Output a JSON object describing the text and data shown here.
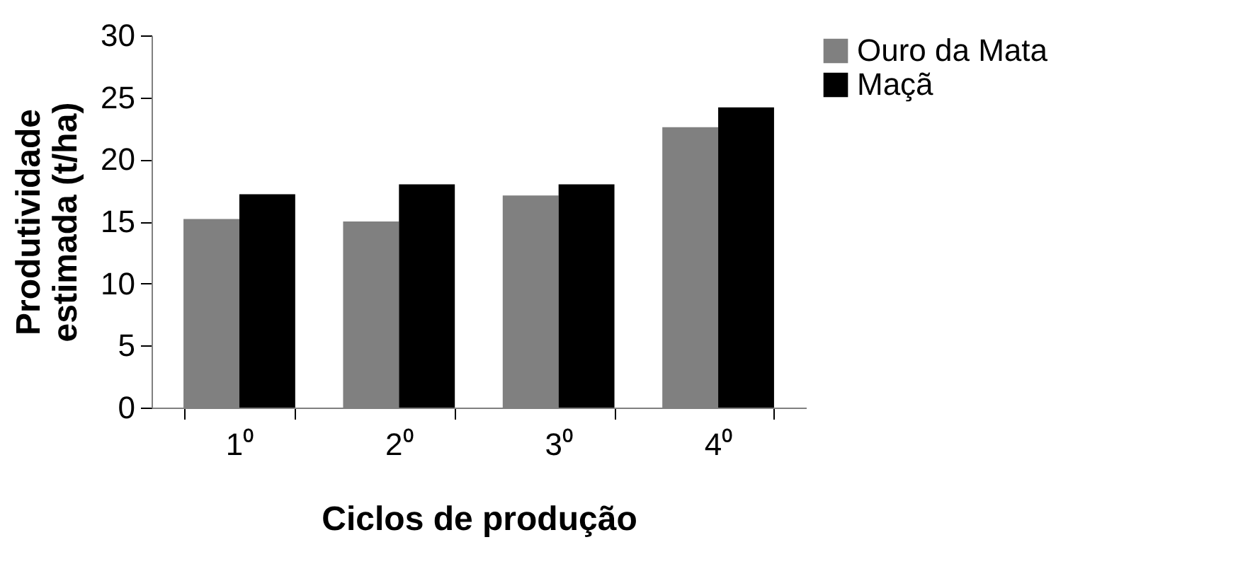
{
  "chart_data": {
    "type": "bar",
    "xlabel": "Ciclos de produção",
    "ylabel": "Produtividade\nestimada (t/ha)",
    "categories": [
      "1⁰",
      "2⁰",
      "3⁰",
      "4⁰"
    ],
    "series": [
      {
        "name": "Ouro da Mata",
        "color": "#808080",
        "values": [
          15.2,
          15.0,
          17.1,
          22.6
        ]
      },
      {
        "name": "Maçã",
        "color": "#000000",
        "values": [
          17.2,
          18.0,
          18.0,
          24.2
        ]
      }
    ],
    "ylim": [
      0,
      30
    ],
    "yticks": [
      0,
      5,
      10,
      15,
      20,
      25,
      30
    ],
    "grid": false,
    "legend": "right"
  }
}
